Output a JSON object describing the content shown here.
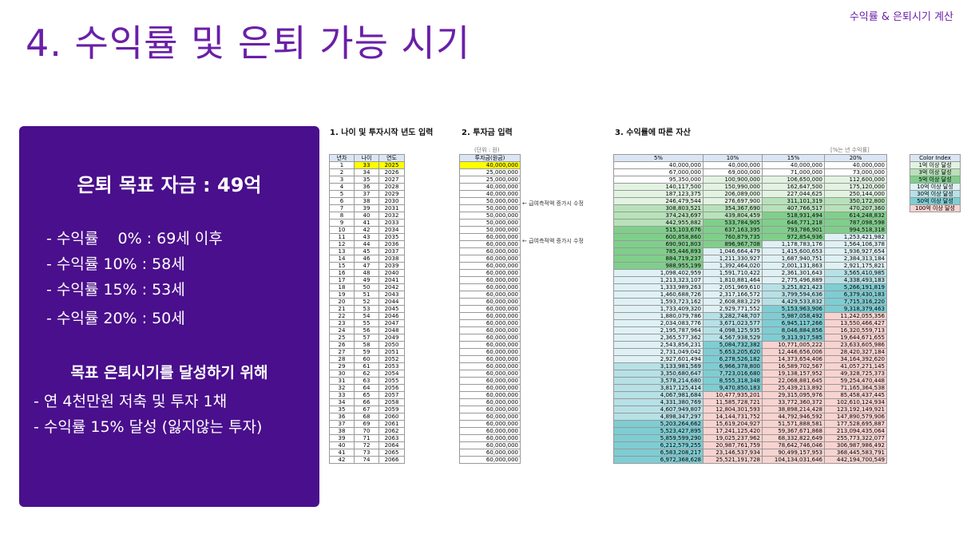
{
  "header": {
    "corner_label": "수익률 & 은퇴시기 계산",
    "title": "4. 수익률 및 은퇴 가능 시기"
  },
  "summary": {
    "goal": "은퇴 목표 자금 : 49억",
    "rates": [
      "- 수익률    0% : 69세 이후",
      "- 수익률 10% : 58세",
      "- 수익률 15% : 53세",
      "- 수익률 20% : 50세"
    ],
    "plan_title": "목표 은퇴시기를 달성하기 위해",
    "plan_items": [
      "- 연 4천만원 저축 및 투자 1채",
      "- 수익률 15% 달성 (잃지않는 투자)"
    ]
  },
  "sections": {
    "age_input": "1. 나이 및 투자시작 년도 입력",
    "invest_input": "2. 투자금 입력",
    "assets": "3. 수익률에 따른 자산"
  },
  "notes": {
    "unit": "(단위 : 원)",
    "rate_unit": "[%는 년 수익률]",
    "memo": "← 급여측적액 증가시 수정"
  },
  "table": {
    "headers_left": [
      "년차",
      "나이",
      "연도"
    ],
    "header_invest": "투자금(원금)",
    "header_rates": [
      "5%",
      "10%",
      "15%",
      "20%"
    ],
    "years": [
      "1",
      "2",
      "3",
      "4",
      "5",
      "6",
      "7",
      "8",
      "9",
      "10",
      "11",
      "12",
      "13",
      "14",
      "15",
      "16",
      "17",
      "18",
      "19",
      "20",
      "21",
      "22",
      "23",
      "24",
      "25",
      "26",
      "27",
      "28",
      "29",
      "30",
      "31",
      "32",
      "33",
      "34",
      "35",
      "36",
      "37",
      "38",
      "39",
      "40",
      "41",
      "42"
    ],
    "ages": [
      "33",
      "34",
      "35",
      "36",
      "37",
      "38",
      "39",
      "40",
      "41",
      "42",
      "43",
      "44",
      "45",
      "46",
      "47",
      "48",
      "49",
      "50",
      "51",
      "52",
      "53",
      "54",
      "55",
      "56",
      "57",
      "58",
      "59",
      "60",
      "61",
      "62",
      "63",
      "64",
      "65",
      "66",
      "67",
      "68",
      "69",
      "70",
      "71",
      "72",
      "73",
      "74"
    ],
    "calendar_years": [
      "2025",
      "2026",
      "2027",
      "2028",
      "2029",
      "2030",
      "2031",
      "2032",
      "2033",
      "2034",
      "2035",
      "2036",
      "2037",
      "2038",
      "2039",
      "2040",
      "2041",
      "2042",
      "2043",
      "2044",
      "2045",
      "2046",
      "2047",
      "2048",
      "2049",
      "2050",
      "2051",
      "2052",
      "2053",
      "2054",
      "2055",
      "2056",
      "2057",
      "2058",
      "2059",
      "2060",
      "2061",
      "2062",
      "2063",
      "2064",
      "2065",
      "2066"
    ],
    "investments": [
      "40,000,000",
      "25,000,000",
      "25,000,000",
      "40,000,000",
      "40,000,000",
      "50,000,000",
      "50,000,000",
      "50,000,000",
      "50,000,000",
      "50,000,000",
      "60,000,000",
      "60,000,000",
      "60,000,000",
      "60,000,000",
      "60,000,000",
      "60,000,000",
      "60,000,000",
      "60,000,000",
      "60,000,000",
      "60,000,000",
      "60,000,000",
      "60,000,000",
      "60,000,000",
      "60,000,000",
      "60,000,000",
      "60,000,000",
      "60,000,000",
      "60,000,000",
      "60,000,000",
      "60,000,000",
      "60,000,000",
      "60,000,000",
      "60,000,000",
      "60,000,000",
      "60,000,000",
      "60,000,000",
      "60,000,000",
      "60,000,000",
      "60,000,000",
      "60,000,000",
      "60,000,000",
      "60,000,000"
    ],
    "r5": [
      "40,000,000",
      "67,000,000",
      "95,350,000",
      "140,117,500",
      "187,123,375",
      "246,479,544",
      "308,803,521",
      "374,243,697",
      "442,955,882",
      "515,103,676",
      "600,858,860",
      "690,901,803",
      "785,446,893",
      "884,719,237",
      "988,955,199",
      "1,098,402,959",
      "1,213,323,107",
      "1,333,989,263",
      "1,460,688,726",
      "1,593,723,162",
      "1,733,409,320",
      "1,880,079,786",
      "2,034,083,776",
      "2,195,787,964",
      "2,365,577,362",
      "2,543,856,231",
      "2,731,049,042",
      "2,927,601,494",
      "3,133,981,569",
      "3,350,680,647",
      "3,578,214,680",
      "3,817,125,414",
      "4,067,981,684",
      "4,331,380,769",
      "4,607,949,807",
      "4,898,347,297",
      "5,203,264,662",
      "5,523,427,895",
      "5,859,599,290",
      "6,212,579,255",
      "6,583,208,217",
      "6,972,368,628"
    ],
    "r10": [
      "40,000,000",
      "69,000,000",
      "100,900,000",
      "150,990,000",
      "206,089,000",
      "276,697,900",
      "354,367,690",
      "439,804,459",
      "533,784,905",
      "637,163,395",
      "760,879,735",
      "896,967,708",
      "1,046,664,479",
      "1,211,330,927",
      "1,392,464,020",
      "1,591,710,422",
      "1,810,881,464",
      "2,051,969,610",
      "2,317,166,572",
      "2,608,883,229",
      "2,929,771,552",
      "3,282,748,707",
      "3,671,023,577",
      "4,098,125,935",
      "4,567,938,529",
      "5,084,732,382",
      "5,653,205,620",
      "6,278,526,182",
      "6,966,378,800",
      "7,723,016,680",
      "8,555,318,348",
      "9,470,850,183",
      "10,477,935,201",
      "11,585,728,721",
      "12,804,301,593",
      "14,144,731,752",
      "15,619,204,927",
      "17,241,125,420",
      "19,025,237,962",
      "20,987,761,759",
      "23,146,537,934",
      "25,521,191,728"
    ],
    "r15": [
      "40,000,000",
      "71,000,000",
      "106,650,000",
      "162,647,500",
      "227,044,625",
      "311,101,319",
      "407,766,517",
      "518,931,494",
      "646,771,218",
      "793,786,901",
      "972,854,936",
      "1,178,783,176",
      "1,415,600,653",
      "1,687,940,751",
      "2,001,131,863",
      "2,361,301,643",
      "2,775,496,889",
      "3,251,821,423",
      "3,799,594,636",
      "4,429,533,832",
      "5,153,963,906",
      "5,987,058,492",
      "6,945,117,266",
      "8,046,884,856",
      "9,313,917,585",
      "10,771,005,222",
      "12,446,656,006",
      "14,373,654,406",
      "16,589,702,567",
      "19,138,157,952",
      "22,068,881,645",
      "25,439,213,892",
      "29,315,095,976",
      "33,772,360,372",
      "38,898,214,428",
      "44,792,946,592",
      "51,571,888,581",
      "59,367,671,868",
      "68,332,822,649",
      "78,642,746,046",
      "90,499,157,953",
      "104,134,031,646"
    ],
    "r20": [
      "40,000,000",
      "73,000,000",
      "112,600,000",
      "175,120,000",
      "250,144,000",
      "350,172,800",
      "470,207,360",
      "614,248,832",
      "787,098,598",
      "994,518,318",
      "1,253,421,982",
      "1,564,106,378",
      "1,936,927,654",
      "2,384,313,184",
      "2,921,175,821",
      "3,565,410,985",
      "4,338,493,183",
      "5,266,191,819",
      "6,379,430,183",
      "7,715,316,220",
      "9,318,379,463",
      "11,242,055,356",
      "13,550,466,427",
      "16,320,559,713",
      "19,644,671,655",
      "23,633,605,986",
      "28,420,327,184",
      "34,164,392,620",
      "41,057,271,145",
      "49,328,725,373",
      "59,254,470,448",
      "71,165,364,538",
      "85,458,437,445",
      "102,610,124,934",
      "123,192,149,921",
      "147,890,579,906",
      "177,528,695,887",
      "213,094,435,064",
      "255,773,322,077",
      "306,987,986,492",
      "368,445,583,791",
      "442,194,700,549"
    ]
  },
  "legend": {
    "title": "Color Index",
    "items": [
      {
        "label": "1억 이상 달성",
        "color": "#e2f3e2"
      },
      {
        "label": "3억 이상 달성",
        "color": "#b7e2b9"
      },
      {
        "label": "5억 이상 달성",
        "color": "#7fcf8b"
      },
      {
        "label": "10억 이상 달성",
        "color": "#dff1f4"
      },
      {
        "label": "30억 이상 달성",
        "color": "#b6e1e6"
      },
      {
        "label": "50억 이상 달성",
        "color": "#7ecdd3"
      },
      {
        "label": "100억 이상 달성",
        "color": "#f8d3d0"
      }
    ]
  },
  "colors": {
    "accent": "#6a1fa8",
    "panel": "#4a0f8c",
    "highlight": "#ffff00"
  }
}
